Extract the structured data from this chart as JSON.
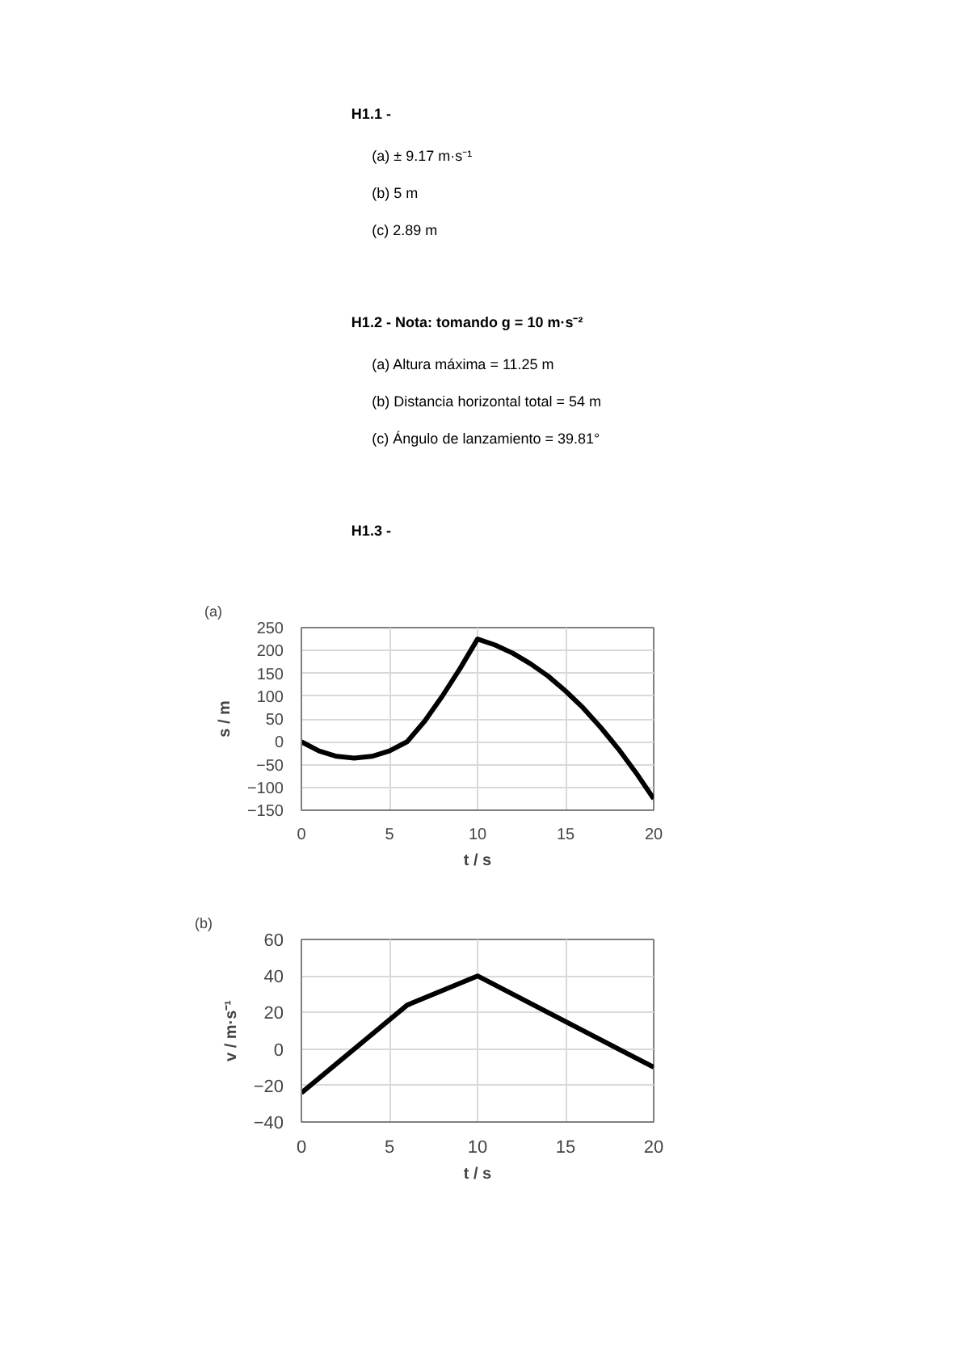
{
  "chart_data": [
    {
      "type": "other",
      "title": "H1.1 -",
      "annotations": [
        "(a) ± 9.17 m·s⁻¹",
        "(b) 5 m",
        "(c) 2.89 m"
      ]
    },
    {
      "type": "other",
      "title": "H1.2 - Nota: tomando g = 10 m·s⁻²",
      "annotations": [
        "(a) Altura máxima = 11.25 m",
        "(b) Distancia horizontal total = 54 m",
        "(c) Ángulo de lanzamiento = 39.81°"
      ]
    },
    {
      "type": "other",
      "title": "H1.3 -"
    },
    {
      "type": "line",
      "title": "(a)",
      "xlabel": "t / s",
      "ylabel": "s / m",
      "x": [
        0,
        1,
        2,
        3,
        4,
        5,
        6,
        7,
        8,
        9,
        10,
        11,
        12,
        13,
        14,
        15,
        16,
        17,
        18,
        19,
        20
      ],
      "series": [
        {
          "color": "#000000",
          "values": [
            0,
            -20,
            -32,
            -36,
            -32,
            -20,
            0,
            45,
            100,
            160,
            225,
            212,
            194,
            171,
            144,
            111,
            74,
            31,
            -16,
            -68,
            -125
          ]
        }
      ],
      "xlim": [
        0,
        20
      ],
      "ylim": [
        -150,
        250
      ],
      "xticks": [
        0,
        5,
        10,
        15,
        20
      ],
      "yticks": [
        -150,
        -100,
        -50,
        0,
        50,
        100,
        150,
        200,
        250
      ],
      "grid": true
    },
    {
      "type": "line",
      "title": "(b)",
      "xlabel": "t / s",
      "ylabel": "v / m·s⁻¹",
      "x": [
        0,
        6,
        10,
        20
      ],
      "series": [
        {
          "color": "#000000",
          "values": [
            -24,
            24,
            40,
            -10
          ]
        }
      ],
      "xlim": [
        0,
        20
      ],
      "ylim": [
        -40,
        60
      ],
      "xticks": [
        0,
        5,
        10,
        15,
        20
      ],
      "yticks": [
        -40,
        -20,
        0,
        20,
        40,
        60
      ],
      "grid": true
    }
  ]
}
